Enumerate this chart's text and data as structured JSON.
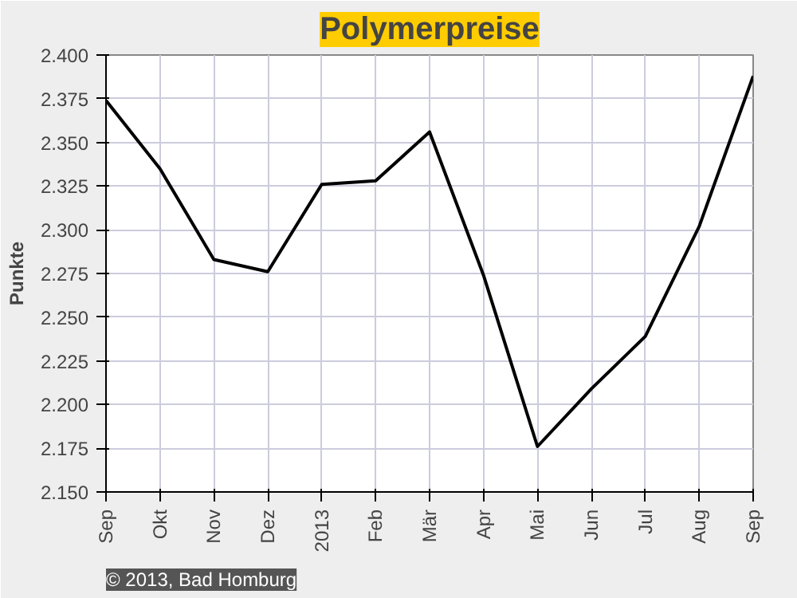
{
  "chart_data": {
    "type": "line",
    "title": "Polymerpreise",
    "ylabel": "Punkte",
    "categories": [
      "Sep",
      "Okt",
      "Nov",
      "Dez",
      "2013",
      "Feb",
      "Mär",
      "Apr",
      "Mai",
      "Jun",
      "Jul",
      "Aug",
      "Sep"
    ],
    "series": [
      {
        "color": "#000000",
        "values": [
          2.374,
          2.335,
          2.283,
          2.276,
          2.326,
          2.328,
          2.356,
          2.274,
          2.176,
          2.209,
          2.239,
          2.302,
          2.388
        ]
      }
    ],
    "ylim": [
      2.15,
      2.4
    ],
    "yticks": [
      {
        "value": 2.15,
        "label": "2.150"
      },
      {
        "value": 2.175,
        "label": "2.175"
      },
      {
        "value": 2.2,
        "label": "2.200"
      },
      {
        "value": 2.225,
        "label": "2.225"
      },
      {
        "value": 2.25,
        "label": "2.250"
      },
      {
        "value": 2.275,
        "label": "2.275"
      },
      {
        "value": 2.3,
        "label": "2.300"
      },
      {
        "value": 2.325,
        "label": "2.325"
      },
      {
        "value": 2.35,
        "label": "2.350"
      },
      {
        "value": 2.375,
        "label": "2.375"
      },
      {
        "value": 2.4,
        "label": "2.400"
      }
    ],
    "grid": true,
    "marker": "none",
    "line_style": "solid",
    "annotations": [
      "© 2013, Bad Homburg"
    ]
  }
}
